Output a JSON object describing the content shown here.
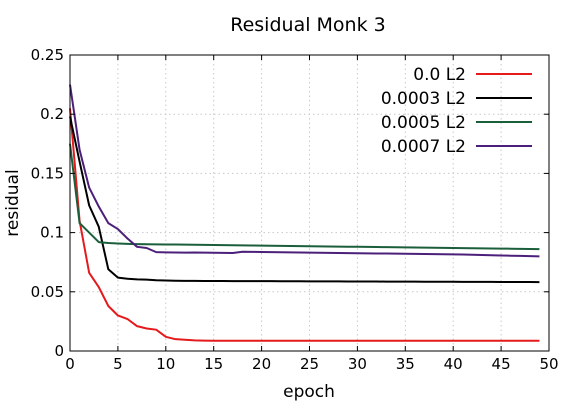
{
  "chart_data": {
    "type": "line",
    "title": "Residual Monk 3",
    "xlabel": "epoch",
    "ylabel": "residual",
    "xlim": [
      0,
      50
    ],
    "ylim": [
      0,
      0.25
    ],
    "xticks": [
      0,
      5,
      10,
      15,
      20,
      25,
      30,
      35,
      40,
      45,
      50
    ],
    "yticks": [
      0,
      0.05,
      0.1,
      0.15,
      0.2,
      0.25
    ],
    "xtick_labels": [
      "0",
      "5",
      "10",
      "15",
      "20",
      "25",
      "30",
      "35",
      "40",
      "45",
      "50"
    ],
    "ytick_labels": [
      "0",
      "0.05",
      "0.1",
      "0.15",
      "0.2",
      "0.25"
    ],
    "grid": true,
    "legend_position": "top-right",
    "x": [
      0,
      1,
      2,
      3,
      4,
      5,
      6,
      7,
      8,
      9,
      10,
      11,
      12,
      13,
      14,
      15,
      16,
      17,
      18,
      19,
      20,
      21,
      22,
      23,
      24,
      25,
      26,
      27,
      28,
      29,
      30,
      31,
      32,
      33,
      34,
      35,
      36,
      37,
      38,
      39,
      40,
      41,
      42,
      43,
      44,
      45,
      46,
      47,
      48,
      49
    ],
    "series": [
      {
        "name": "0.0 L2",
        "color": "#e41a1c",
        "values": [
          0.205,
          0.11,
          0.066,
          0.054,
          0.038,
          0.03,
          0.027,
          0.021,
          0.019,
          0.018,
          0.012,
          0.01,
          0.0095,
          0.009,
          0.0088,
          0.0087,
          0.0087,
          0.0087,
          0.0087,
          0.0087,
          0.0087,
          0.0087,
          0.0087,
          0.0087,
          0.0087,
          0.0087,
          0.0087,
          0.0087,
          0.0087,
          0.0087,
          0.0087,
          0.0087,
          0.0087,
          0.0087,
          0.0087,
          0.0087,
          0.0087,
          0.0087,
          0.0087,
          0.0087,
          0.0087,
          0.0087,
          0.0087,
          0.0087,
          0.0087,
          0.0087,
          0.0087,
          0.0087,
          0.0087,
          0.0087
        ]
      },
      {
        "name": "0.0003 L2",
        "color": "#000000",
        "values": [
          0.198,
          0.16,
          0.123,
          0.105,
          0.069,
          0.062,
          0.061,
          0.0605,
          0.0603,
          0.0598,
          0.0595,
          0.0593,
          0.0592,
          0.0592,
          0.0591,
          0.0591,
          0.0591,
          0.059,
          0.059,
          0.059,
          0.059,
          0.059,
          0.0589,
          0.0589,
          0.0589,
          0.0588,
          0.0588,
          0.0588,
          0.0588,
          0.0587,
          0.0587,
          0.0587,
          0.0587,
          0.0586,
          0.0586,
          0.0586,
          0.0586,
          0.0585,
          0.0585,
          0.0585,
          0.0585,
          0.0584,
          0.0584,
          0.0584,
          0.0584,
          0.0583,
          0.0583,
          0.0583,
          0.0583,
          0.0582
        ]
      },
      {
        "name": "0.0005 L2",
        "color": "#1b5e3b",
        "values": [
          0.175,
          0.108,
          0.1,
          0.092,
          0.0912,
          0.0908,
          0.0905,
          0.0903,
          0.0902,
          0.0901,
          0.09,
          0.0899,
          0.0898,
          0.0897,
          0.0896,
          0.0895,
          0.0894,
          0.0893,
          0.0892,
          0.0891,
          0.089,
          0.0889,
          0.0888,
          0.0887,
          0.0886,
          0.0885,
          0.0884,
          0.0883,
          0.0882,
          0.0881,
          0.088,
          0.0879,
          0.0878,
          0.0877,
          0.0876,
          0.0875,
          0.0874,
          0.0873,
          0.0872,
          0.0871,
          0.087,
          0.0869,
          0.0868,
          0.0867,
          0.0866,
          0.0865,
          0.0864,
          0.0863,
          0.0862,
          0.086
        ]
      },
      {
        "name": "0.0007 L2",
        "color": "#4b1f7a",
        "values": [
          0.225,
          0.17,
          0.138,
          0.122,
          0.108,
          0.103,
          0.095,
          0.088,
          0.087,
          0.0835,
          0.0833,
          0.0832,
          0.0831,
          0.0832,
          0.0831,
          0.083,
          0.0829,
          0.0828,
          0.0838,
          0.0837,
          0.0836,
          0.0835,
          0.0834,
          0.0833,
          0.0832,
          0.0831,
          0.083,
          0.0829,
          0.0828,
          0.0827,
          0.0826,
          0.0825,
          0.0824,
          0.0823,
          0.0822,
          0.0821,
          0.082,
          0.0819,
          0.0818,
          0.0817,
          0.0816,
          0.0815,
          0.0813,
          0.0811,
          0.0809,
          0.0807,
          0.0805,
          0.0803,
          0.0801,
          0.0799
        ]
      }
    ]
  }
}
